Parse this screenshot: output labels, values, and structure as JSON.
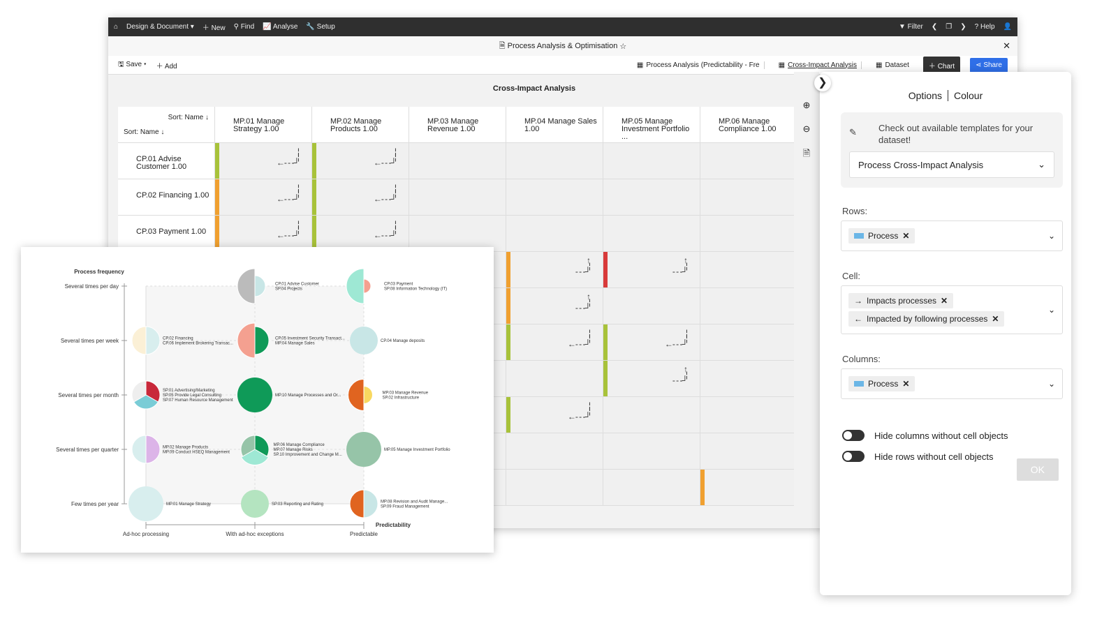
{
  "topbar": {
    "items": [
      "Design & Document",
      "New",
      "Find",
      "Analyse",
      "Setup"
    ],
    "right": [
      "Filter",
      "Help"
    ]
  },
  "window": {
    "title": "Process Analysis & Optimisation",
    "star": "☆"
  },
  "toolbar": {
    "save": "Save",
    "add": "Add",
    "tabs": [
      "Process Analysis (Predictability - Fre",
      "Cross-Impact Analysis",
      "Dataset"
    ],
    "chart": "Chart",
    "share": "Share"
  },
  "grid": {
    "title": "Cross-Impact Analysis",
    "sort_col": "Sort: Name",
    "sort_row": "Sort: Name",
    "columns": [
      "MP.01 Manage Strategy 1.00",
      "MP.02 Manage Products 1.00",
      "MP.03 Manage Revenue 1.00",
      "MP.04 Manage Sales 1.00",
      "MP.05 Manage Investment Portfolio ...",
      "MP.06 Manage Compliance 1.00"
    ],
    "rows": [
      "CP.01 Advise Customer 1.00",
      "CP.02 Financing 1.00",
      "CP.03 Payment 1.00",
      "",
      "",
      "",
      "",
      "",
      "",
      ""
    ],
    "cells": [
      {
        "r": 0,
        "c": 0,
        "color": "#a8c23a",
        "arrow": "left"
      },
      {
        "r": 1,
        "c": 0,
        "color": "#f0a030",
        "arrow": "left"
      },
      {
        "r": 2,
        "c": 0,
        "color": "#f0a030",
        "arrow": "left"
      },
      {
        "r": 0,
        "c": 1,
        "color": "#a8c23a",
        "arrow": "left"
      },
      {
        "r": 1,
        "c": 1,
        "color": "#a8c23a",
        "arrow": "left"
      },
      {
        "r": 2,
        "c": 1,
        "color": "#a8c23a",
        "arrow": "left"
      },
      {
        "r": 3,
        "c": 3,
        "color": "#f0a030",
        "arrow": "up"
      },
      {
        "r": 3,
        "c": 4,
        "color": "#d83a3a",
        "arrow": "up"
      },
      {
        "r": 4,
        "c": 3,
        "color": "#f0a030",
        "arrow": "up"
      },
      {
        "r": 5,
        "c": 3,
        "color": "#a8c23a",
        "arrow": "left"
      },
      {
        "r": 5,
        "c": 4,
        "color": "#a8c23a",
        "arrow": "left"
      },
      {
        "r": 6,
        "c": 4,
        "color": "#a8c23a",
        "arrow": "up"
      },
      {
        "r": 7,
        "c": 3,
        "color": "#a8c23a",
        "arrow": "left"
      },
      {
        "r": 9,
        "c": 5,
        "color": "#f0a030",
        "arrow": ""
      }
    ]
  },
  "panel": {
    "tabs": [
      "Options",
      "Colour"
    ],
    "template_text": "Check out available templates for your dataset!",
    "template_value": "Process Cross-Impact Analysis",
    "rows_label": "Rows:",
    "rows_chip": "Process",
    "cell_label": "Cell:",
    "cell_chips": [
      "Impacts processes",
      "Impacted by following processes"
    ],
    "columns_label": "Columns:",
    "columns_chip": "Process",
    "toggles": [
      "Hide columns without cell objects",
      "Hide rows without cell objects"
    ],
    "ok": "OK"
  },
  "chart_data": {
    "type": "scatter",
    "ylabel": "Process frequency",
    "xlabel": "Predictability",
    "x_ticks": [
      "Ad-hoc processing",
      "With ad-hoc exceptions",
      "Predictable"
    ],
    "y_ticks": [
      "Several times per day",
      "Several times per week",
      "Several times per month",
      "Several times per quarter",
      "Few times per year"
    ],
    "bubbles": [
      {
        "x": 1,
        "y": 0,
        "labels": [
          "CP.01 Advise Customer",
          "SP.04 Projects"
        ],
        "wedges": [
          {
            "color": "#c8e6e6",
            "size": 0.6
          },
          {
            "color": "#bbbbbb",
            "size": 1
          }
        ]
      },
      {
        "x": 2,
        "y": 0,
        "labels": [
          "CP.03 Payment",
          "SP.08 Information Technology (IT)"
        ],
        "wedges": [
          {
            "color": "#f4a090",
            "size": 0.4
          },
          {
            "color": "#9ee8d4",
            "size": 1
          }
        ]
      },
      {
        "x": 0,
        "y": 1,
        "labels": [
          "CP.02 Financing",
          "CP.06 Implement Brokering Transac..."
        ],
        "wedges": [
          {
            "color": "#d8eeee",
            "size": 0.8
          },
          {
            "color": "#fbf0d6",
            "size": 0.8
          }
        ]
      },
      {
        "x": 1,
        "y": 1,
        "labels": [
          "CP.05 Investment Security Transact...",
          "MP.04 Manage Sales"
        ],
        "wedges": [
          {
            "color": "#0f9a58",
            "size": 0.8
          },
          {
            "color": "#f4a090",
            "size": 1
          }
        ]
      },
      {
        "x": 2,
        "y": 1,
        "labels": [
          "CP.04 Manage deposits"
        ],
        "wedges": [
          {
            "color": "#c8e6e6",
            "size": 0.8
          }
        ]
      },
      {
        "x": 0,
        "y": 2,
        "labels": [
          "SP.01 Advertising/Marketing",
          "SP.05 Provide Legal Consulting",
          "SP.07 Human Resource Management"
        ],
        "wedges": [
          {
            "color": "#c8283a",
            "size": 0.8
          },
          {
            "color": "#7accd6",
            "size": 0.8
          },
          {
            "color": "#eeeeee",
            "size": 0.8
          }
        ]
      },
      {
        "x": 1,
        "y": 2,
        "labels": [
          "MP.10 Manage Processes and Or..."
        ],
        "wedges": [
          {
            "color": "#0f9a58",
            "size": 1
          }
        ]
      },
      {
        "x": 2,
        "y": 2,
        "labels": [
          "MP.03 Manage Revenue",
          "SP.02 Infrastructure"
        ],
        "wedges": [
          {
            "color": "#f8d860",
            "size": 0.5
          },
          {
            "color": "#e06420",
            "size": 0.9
          }
        ]
      },
      {
        "x": 0,
        "y": 3,
        "labels": [
          "MP.02 Manage Products",
          "MP.09 Conduct HSEQ Management"
        ],
        "wedges": [
          {
            "color": "#dcb4e8",
            "size": 0.8
          },
          {
            "color": "#d8eeee",
            "size": 0.8
          }
        ]
      },
      {
        "x": 1,
        "y": 3,
        "labels": [
          "MP.06 Manage Compliance",
          "MP.07 Manage Risks",
          "SP.10 Improvement and Change M..."
        ],
        "wedges": [
          {
            "color": "#0f9a58",
            "size": 0.8
          },
          {
            "color": "#9ee8d4",
            "size": 0.9
          },
          {
            "color": "#96c4a8",
            "size": 0.8
          }
        ]
      },
      {
        "x": 2,
        "y": 3,
        "labels": [
          "MP.05 Manage Investment Portfolio"
        ],
        "wedges": [
          {
            "color": "#96c4a8",
            "size": 1
          }
        ]
      },
      {
        "x": 0,
        "y": 4,
        "labels": [
          "MP.01 Manage Strategy"
        ],
        "wedges": [
          {
            "color": "#d8eeee",
            "size": 1
          }
        ]
      },
      {
        "x": 1,
        "y": 4,
        "labels": [
          "SP.03 Reporting and Rating"
        ],
        "wedges": [
          {
            "color": "#b4e4c0",
            "size": 0.8
          }
        ]
      },
      {
        "x": 2,
        "y": 4,
        "labels": [
          "MP.08 Revision and Audit Manage...",
          "SP.09 Fraud Management"
        ],
        "wedges": [
          {
            "color": "#c8e6e6",
            "size": 0.8
          },
          {
            "color": "#e06420",
            "size": 0.8
          }
        ]
      }
    ]
  }
}
